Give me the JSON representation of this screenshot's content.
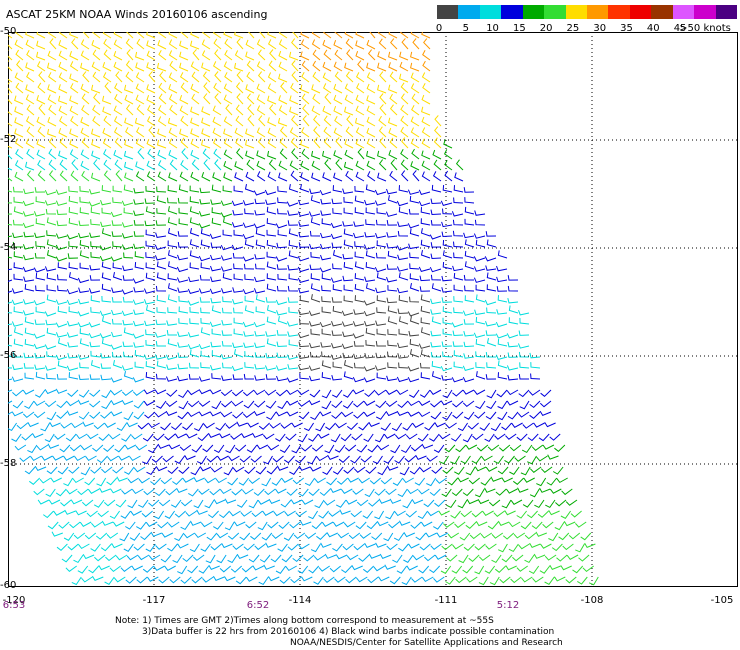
{
  "title": "ASCAT 25KM NOAA Winds 20160106 ascending",
  "legend": {
    "labels": [
      "0",
      "5",
      "10",
      "15",
      "20",
      "25",
      "30",
      "35",
      "40",
      "45",
      ">50 knots"
    ],
    "colors": [
      "#444444",
      "#00aaee",
      "#00dddd",
      "#0000dd",
      "#00aa00",
      "#33dd33",
      "#ffdd00",
      "#ff9900",
      "#ff3300",
      "#ee0000",
      "#993300",
      "#dd55ff",
      "#cc00cc",
      "#4b0082"
    ]
  },
  "axes": {
    "lat_labels": [
      "-50",
      "-52",
      "-54",
      "-56",
      "-58",
      "-60"
    ],
    "lon_labels": [
      "-120",
      "-117",
      "-114",
      "-111",
      "-108",
      "-105"
    ],
    "time_labels": [
      "6:53",
      "6:52",
      "5:12"
    ]
  },
  "notes": {
    "line1": "Note: 1) Times are GMT 2)Times along bottom correspond to measurement at ~55S",
    "line2": "3)Data buffer is 22 hrs from 20160106 4) Black wind barbs indicate possible contamination",
    "line3": "NOAA/NESDIS/Center for Satellite Applications and Research"
  }
}
